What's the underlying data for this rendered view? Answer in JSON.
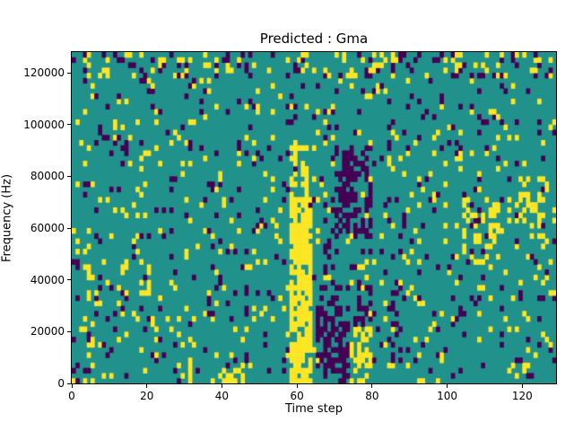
{
  "chart_data": {
    "type": "heatmap",
    "title": "Predicted : Gma",
    "xlabel": "Time step",
    "ylabel": "Frequency (Hz)",
    "x_range": [
      0,
      129
    ],
    "y_range": [
      0,
      128000
    ],
    "x_ticks": [
      0,
      20,
      40,
      60,
      80,
      100,
      120
    ],
    "y_ticks": [
      0,
      20000,
      40000,
      60000,
      80000,
      100000,
      120000
    ],
    "grid": {
      "cols": 129,
      "rows": 64
    },
    "value_colors": {
      "0": "#21918c",
      "1": "#fde725",
      "2": "#440154"
    },
    "value_names": {
      "0": "teal-mid",
      "1": "yellow-high",
      "2": "purple-low"
    },
    "base_density": {
      "1": 0.055,
      "2": 0.05
    },
    "seed": 7,
    "features": [
      {
        "x0": 58,
        "x1": 64,
        "y0": 0,
        "y1": 72000,
        "value": 1,
        "density": 0.8
      },
      {
        "x0": 58,
        "x1": 63,
        "y0": 72000,
        "y1": 94000,
        "value": 1,
        "density": 0.35
      },
      {
        "x0": 65,
        "x1": 74,
        "y0": 0,
        "y1": 30000,
        "value": 2,
        "density": 0.55
      },
      {
        "x0": 70,
        "x1": 80,
        "y0": 56000,
        "y1": 92000,
        "value": 2,
        "density": 0.45
      },
      {
        "x0": 74,
        "x1": 80,
        "y0": 0,
        "y1": 22000,
        "value": 1,
        "density": 0.45
      },
      {
        "x0": 66,
        "x1": 70,
        "y0": 30000,
        "y1": 56000,
        "value": 2,
        "density": 0.3
      },
      {
        "x0": 76,
        "x1": 80,
        "y0": 22000,
        "y1": 40000,
        "value": 2,
        "density": 0.4
      },
      {
        "x0": 104,
        "x1": 114,
        "y0": 46000,
        "y1": 72000,
        "value": 1,
        "density": 0.3
      },
      {
        "x0": 29,
        "x1": 33,
        "y0": 0,
        "y1": 18000,
        "value": 1,
        "density": 0.3
      },
      {
        "x0": 39,
        "x1": 46,
        "y0": 0,
        "y1": 6000,
        "value": 1,
        "density": 0.5
      },
      {
        "x0": 3,
        "x1": 8,
        "y0": 0,
        "y1": 46000,
        "value": 1,
        "density": 0.2
      },
      {
        "x0": 0,
        "x1": 129,
        "y0": 118000,
        "y1": 128000,
        "value": 1,
        "density": 0.1
      },
      {
        "x0": 0,
        "x1": 129,
        "y0": 118000,
        "y1": 128000,
        "value": 2,
        "density": 0.08
      },
      {
        "x0": 118,
        "x1": 126,
        "y0": 56000,
        "y1": 80000,
        "value": 1,
        "density": 0.25
      },
      {
        "x0": 84,
        "x1": 90,
        "y0": 8000,
        "y1": 40000,
        "value": 2,
        "density": 0.2
      }
    ]
  }
}
